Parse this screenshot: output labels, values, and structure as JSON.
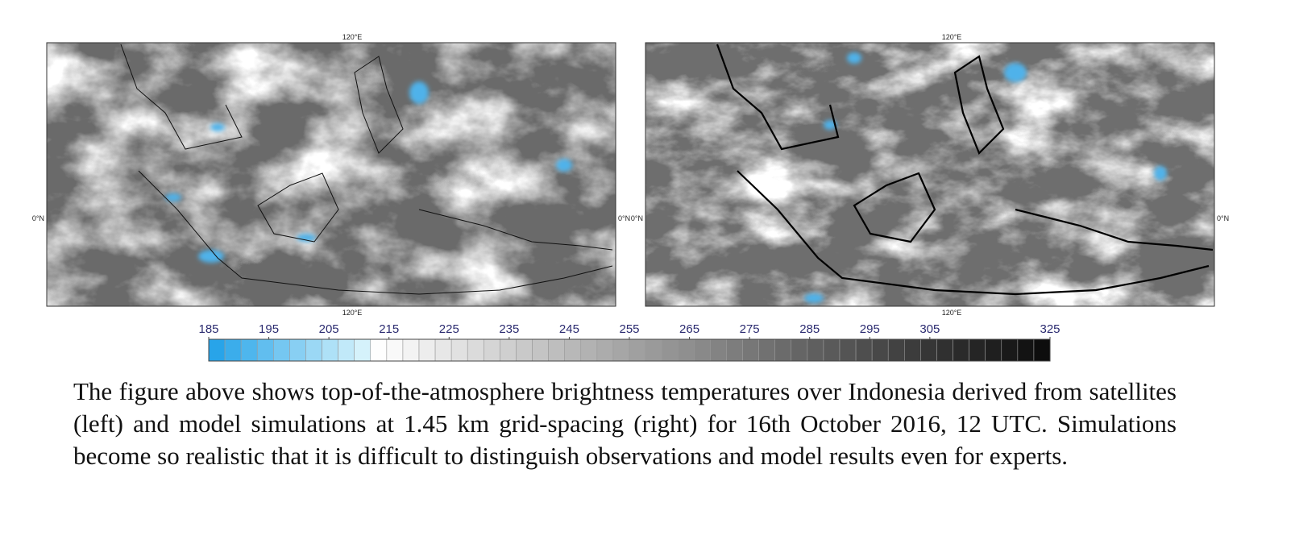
{
  "maps": [
    {
      "top_label": "120°E",
      "bottom_label": "120°E",
      "left_label": "0°N",
      "right_label": "0°N"
    },
    {
      "top_label": "120°E",
      "bottom_label": "120°E",
      "left_label": "0°N",
      "right_label": "0°N"
    }
  ],
  "colorbar": {
    "ticks": [
      185,
      195,
      205,
      215,
      225,
      235,
      245,
      255,
      265,
      275,
      285,
      295,
      305,
      325
    ]
  },
  "caption": "The figure above shows top-of-the-atmosphere brightness temperatures over Indonesia derived from satellites (left) and model simulations at 1.45 km grid-spacing (right) for 16th October 2016, 12 UTC. Simulations become so realistic that it is difficult to distinguish observations and model results even for experts."
}
